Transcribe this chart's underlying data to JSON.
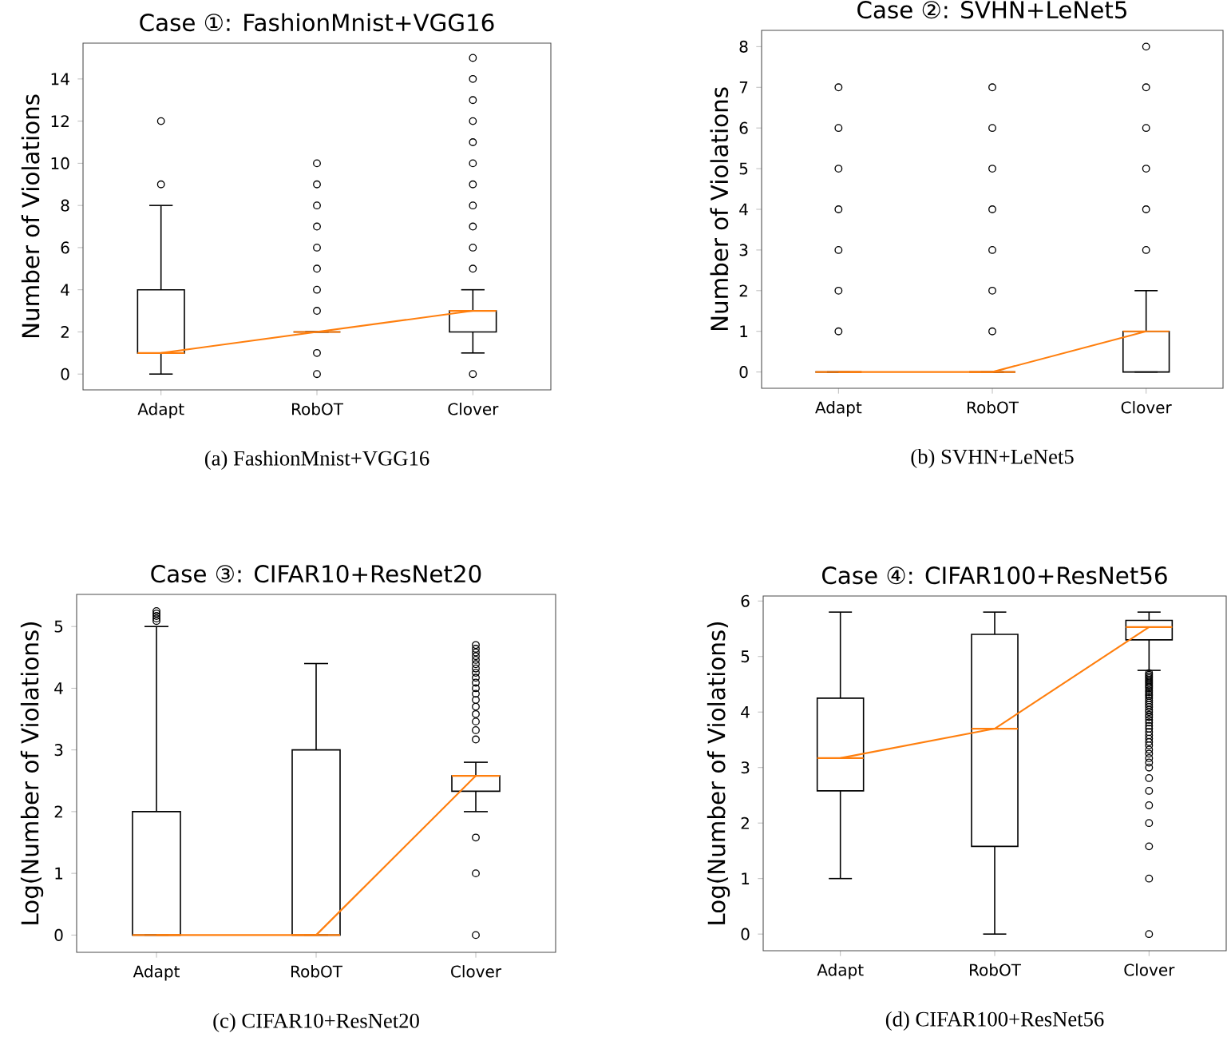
{
  "chart_data": [
    {
      "type": "box",
      "title": "Case ①: FashionMnist+VGG16",
      "ylabel": "Number of Violations",
      "categories": [
        "Adapt",
        "RobOT",
        "Clover"
      ],
      "ylim": [
        -0.75,
        15.7
      ],
      "yticks": [
        0,
        2,
        4,
        6,
        8,
        10,
        12,
        14
      ],
      "annotations": [
        "(a) FashionMnist+VGG16"
      ],
      "series": [
        {
          "type": "box",
          "color": "#000000",
          "marker": "circle",
          "boxes": [
            {
              "low": 0,
              "q1": 1,
              "median": 1,
              "q3": 4,
              "high": 8,
              "outliers": [
                9,
                12
              ]
            },
            {
              "low": 2,
              "q1": 2,
              "median": 2,
              "q3": 2,
              "high": 2,
              "outliers": [
                0,
                1,
                3,
                4,
                5,
                6,
                7,
                8,
                9,
                10
              ]
            },
            {
              "low": 1,
              "q1": 2,
              "median": 3,
              "q3": 3,
              "high": 4,
              "outliers": [
                0,
                5,
                6,
                7,
                8,
                9,
                10,
                11,
                12,
                13,
                14,
                15
              ]
            }
          ]
        },
        {
          "type": "line",
          "color": "#ff7f0e",
          "values": [
            1,
            2,
            3
          ]
        }
      ]
    },
    {
      "type": "box",
      "title": "Case ②: SVHN+LeNet5",
      "ylabel": "Number of Violations",
      "categories": [
        "Adapt",
        "RobOT",
        "Clover"
      ],
      "ylim": [
        -0.4,
        8.4
      ],
      "yticks": [
        0,
        1,
        2,
        3,
        4,
        5,
        6,
        7,
        8
      ],
      "annotations": [
        "(b) SVHN+LeNet5"
      ],
      "series": [
        {
          "type": "box",
          "color": "#000000",
          "marker": "circle",
          "boxes": [
            {
              "low": 0,
              "q1": 0,
              "median": 0,
              "q3": 0,
              "high": 0,
              "outliers": [
                1,
                2,
                3,
                4,
                5,
                6,
                7
              ]
            },
            {
              "low": 0,
              "q1": 0,
              "median": 0,
              "q3": 0,
              "high": 0,
              "outliers": [
                1,
                2,
                3,
                4,
                5,
                6,
                7
              ]
            },
            {
              "low": 0,
              "q1": 0,
              "median": 1,
              "q3": 1,
              "high": 2,
              "outliers": [
                3,
                4,
                5,
                6,
                7,
                8
              ]
            }
          ]
        },
        {
          "type": "line",
          "color": "#ff7f0e",
          "values": [
            0,
            0,
            1
          ]
        }
      ]
    },
    {
      "type": "box",
      "title": "Case ③: CIFAR10+ResNet20",
      "ylabel": "Log(Number of Violations)",
      "categories": [
        "Adapt",
        "RobOT",
        "Clover"
      ],
      "ylim": [
        -0.28,
        5.52
      ],
      "yticks": [
        0,
        1,
        2,
        3,
        4,
        5
      ],
      "annotations": [
        "(c) CIFAR10+ResNet20"
      ],
      "series": [
        {
          "type": "box",
          "color": "#000000",
          "marker": "circle",
          "boxes": [
            {
              "low": 0,
              "q1": 0,
              "median": 0,
              "q3": 2,
              "high": 5,
              "outliers": [
                5.09,
                5.13,
                5.17,
                5.21,
                5.25
              ]
            },
            {
              "low": 0,
              "q1": 0,
              "median": 0,
              "q3": 3,
              "high": 4.4
            },
            {
              "low": 2,
              "q1": 2.33,
              "median": 2.58,
              "q3": 2.58,
              "high": 2.8,
              "outliers": [
                0,
                1,
                1.58,
                3.17,
                3.32,
                3.46,
                3.58,
                3.7,
                3.81,
                3.91,
                4,
                4.09,
                4.17,
                4.25,
                4.32,
                4.39,
                4.46,
                4.52,
                4.58,
                4.64,
                4.7
              ]
            }
          ]
        },
        {
          "type": "line",
          "color": "#ff7f0e",
          "values": [
            0,
            0,
            2.58
          ]
        }
      ]
    },
    {
      "type": "box",
      "title": "Case ④: CIFAR100+ResNet56",
      "ylabel": "Log(Number of Violations)",
      "categories": [
        "Adapt",
        "RobOT",
        "Clover"
      ],
      "ylim": [
        -0.3,
        6.09
      ],
      "yticks": [
        0,
        1,
        2,
        3,
        4,
        5,
        6
      ],
      "annotations": [
        "(d) CIFAR100+ResNet56"
      ],
      "series": [
        {
          "type": "box",
          "color": "#000000",
          "marker": "circle",
          "boxes": [
            {
              "low": 1,
              "q1": 2.58,
              "median": 3.17,
              "q3": 4.25,
              "high": 5.8
            },
            {
              "low": 0,
              "q1": 1.58,
              "median": 3.7,
              "q3": 5.4,
              "high": 5.8
            },
            {
              "low": 4.75,
              "q1": 5.3,
              "median": 5.53,
              "q3": 5.65,
              "high": 5.8,
              "outliers": [
                0,
                1,
                1.58,
                2,
                2.32,
                2.58,
                2.81,
                3,
                3.09,
                3.17,
                3.25,
                3.32,
                3.4,
                3.46,
                3.52,
                3.58,
                3.64,
                3.7,
                3.75,
                3.81,
                3.86,
                3.91,
                3.95,
                4,
                4.04,
                4.09,
                4.13,
                4.17,
                4.21,
                4.25,
                4.29,
                4.32,
                4.36,
                4.39,
                4.43,
                4.46,
                4.49,
                4.52,
                4.55,
                4.58,
                4.61,
                4.64,
                4.67,
                4.7
              ]
            }
          ]
        },
        {
          "type": "line",
          "color": "#ff7f0e",
          "values": [
            3.17,
            3.7,
            5.53
          ]
        }
      ]
    }
  ]
}
